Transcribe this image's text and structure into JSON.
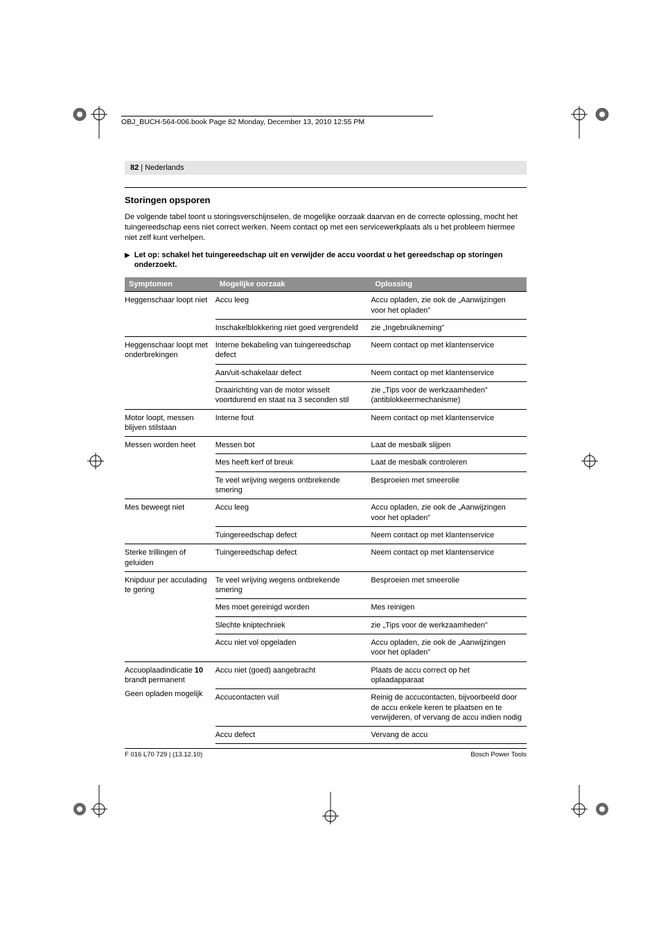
{
  "running_head": "OBJ_BUCH-564-006.book  Page 82  Monday, December 13, 2010  12:55 PM",
  "page_bar": {
    "num": "82",
    "sep": " | ",
    "lang": "Nederlands"
  },
  "section_title": "Storingen opsporen",
  "intro": "De volgende tabel toont u storingsverschijnselen, de mogelijke oorzaak daarvan en de correcte oplossing, mocht het tuingereedschap eens niet correct werken. Neem contact op met een servicewerkplaats als u het probleem hiermee niet zelf kunt verhelpen.",
  "warning": "Let op: schakel het tuingereedschap uit en verwijder de accu voordat u het gereedschap op storingen onderzoekt.",
  "table": {
    "headers": {
      "symptom": "Symptomen",
      "cause": "Mogelijke oorzaak",
      "fix": "Oplossing"
    },
    "groups": [
      {
        "symptom": "Heggenschaar loopt niet",
        "rows": [
          {
            "cause": "Accu leeg",
            "fix": "Accu opladen, zie ook de „Aanwijzingen voor het opladen”"
          },
          {
            "cause": "Inschakelblokkering niet goed vergrendeld",
            "fix": "zie „Ingebruikneming”"
          }
        ]
      },
      {
        "symptom": "Heggenschaar loopt met onderbrekingen",
        "rows": [
          {
            "cause": "Interne bekabeling van tuingereedschap defect",
            "fix": "Neem contact op met klantenservice"
          },
          {
            "cause": "Aan/uit-schakelaar defect",
            "fix": "Neem contact op met klantenservice"
          },
          {
            "cause": "Draairichting van de motor wisselt voortdurend en staat na 3 seconden stil",
            "fix": "zie „Tips voor de werkzaamheden” (antiblokkeermechanisme)"
          }
        ]
      },
      {
        "symptom": "Motor loopt, messen blijven stilstaan",
        "rows": [
          {
            "cause": "Interne fout",
            "fix": "Neem contact op met klantenservice"
          }
        ]
      },
      {
        "symptom": "Messen worden heet",
        "rows": [
          {
            "cause": "Messen bot",
            "fix": "Laat de mesbalk slijpen"
          },
          {
            "cause": "Mes heeft kerf of breuk",
            "fix": "Laat de mesbalk controleren"
          },
          {
            "cause": "Te veel wrijving wegens ontbrekende smering",
            "fix": "Besproeien met smeerolie"
          }
        ]
      },
      {
        "symptom": "Mes beweegt niet",
        "rows": [
          {
            "cause": "Accu leeg",
            "fix": "Accu opladen, zie ook de „Aanwijzingen voor het opladen”"
          },
          {
            "cause": "Tuingereedschap defect",
            "fix": "Neem contact op met klantenservice"
          }
        ]
      },
      {
        "symptom": "Sterke trillingen of geluiden",
        "rows": [
          {
            "cause": "Tuingereedschap defect",
            "fix": "Neem contact op met klantenservice"
          }
        ]
      },
      {
        "symptom": "Knipduur per acculading te gering",
        "rows": [
          {
            "cause": "Te veel wrijving wegens ontbrekende smering",
            "fix": "Besproeien met smeerolie"
          },
          {
            "cause": "Mes moet gereinigd worden",
            "fix": "Mes reinigen"
          },
          {
            "cause": "Slechte kniptechniek",
            "fix": "zie „Tips voor de werkzaamheden”"
          },
          {
            "cause": "Accu niet vol opgeladen",
            "fix": "Accu opladen, zie ook de „Aanwijzingen voor het opladen”"
          }
        ]
      },
      {
        "symptom_html": true,
        "symptom_pre": "Accuoplaadindicatie ",
        "symptom_bold": "10",
        "symptom_post": " brandt permanent",
        "symptom_line2": "Geen opladen mogelijk",
        "rows": [
          {
            "cause": "Accu niet (goed) aangebracht",
            "fix": "Plaats de accu correct op het oplaadapparaat"
          },
          {
            "cause": "Accucontacten vuil",
            "fix": "Reinig de accucontacten, bijvoorbeeld door de accu enkele keren te plaatsen en te verwijderen, of vervang de accu indien nodig"
          },
          {
            "cause": "Accu defect",
            "fix": "Vervang de accu"
          }
        ]
      }
    ]
  },
  "footer": {
    "left": "F 016 L70 729 | (13.12.10)",
    "right": "Bosch Power Tools"
  },
  "colors": {
    "header_bg": "#8f8f8f",
    "header_fg": "#ffffff",
    "bar_bg": "#e5e5e5",
    "text": "#000000",
    "background": "#ffffff"
  }
}
